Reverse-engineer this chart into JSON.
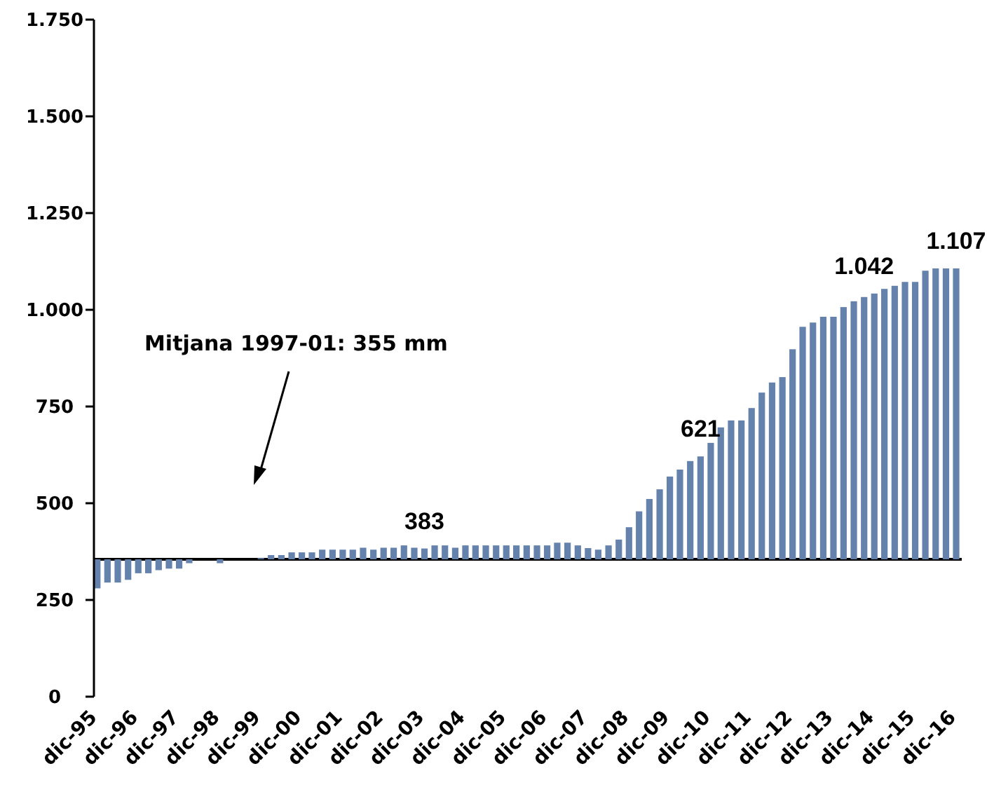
{
  "chart_data": {
    "type": "bar",
    "color": "#6582ad",
    "x": [
      "1995-12",
      "1996-03",
      "1996-06",
      "1996-09",
      "1996-12",
      "1997-03",
      "1997-06",
      "1997-09",
      "1997-12",
      "1998-03",
      "1998-06",
      "1998-09",
      "1998-12",
      "1999-03",
      "1999-06",
      "1999-09",
      "1999-12",
      "2000-03",
      "2000-06",
      "2000-09",
      "2000-12",
      "2001-03",
      "2001-06",
      "2001-09",
      "2001-12",
      "2002-03",
      "2002-06",
      "2002-09",
      "2002-12",
      "2003-03",
      "2003-06",
      "2003-09",
      "2003-12",
      "2004-03",
      "2004-06",
      "2004-09",
      "2004-12",
      "2005-03",
      "2005-06",
      "2005-09",
      "2005-12",
      "2006-03",
      "2006-06",
      "2006-09",
      "2006-12",
      "2007-03",
      "2007-06",
      "2007-09",
      "2007-12",
      "2008-03",
      "2008-06",
      "2008-09",
      "2008-12",
      "2009-03",
      "2009-06",
      "2009-09",
      "2009-12",
      "2010-03",
      "2010-06",
      "2010-09",
      "2010-12",
      "2011-03",
      "2011-06",
      "2011-09",
      "2011-12",
      "2012-03",
      "2012-06",
      "2012-09",
      "2012-12",
      "2013-03",
      "2013-06",
      "2013-09",
      "2013-12",
      "2014-03",
      "2014-06",
      "2014-09",
      "2014-12",
      "2015-03",
      "2015-06",
      "2015-09",
      "2015-12",
      "2016-03",
      "2016-06",
      "2016-09",
      "2016-12"
    ],
    "base": [
      355,
      355,
      355,
      355,
      355,
      355,
      355,
      355,
      355,
      355,
      null,
      null,
      355,
      null,
      null,
      null,
      355,
      355,
      355,
      355,
      355,
      355,
      355,
      355,
      355,
      355,
      355,
      355,
      355,
      355,
      355,
      355,
      355,
      355,
      355,
      355,
      355,
      355,
      355,
      355,
      355,
      355,
      355,
      355,
      355,
      355,
      355,
      355,
      355,
      355,
      355,
      355,
      355,
      355,
      355,
      355,
      355,
      355,
      355,
      355,
      355,
      355,
      355,
      355,
      355,
      355,
      355,
      355,
      355,
      355,
      355,
      355,
      355,
      355,
      355,
      355,
      355,
      355,
      355,
      355,
      355,
      355,
      355,
      355,
      355
    ],
    "values": [
      -75,
      -60,
      -60,
      -53,
      -36,
      -36,
      -28,
      -24,
      -24,
      -10,
      null,
      null,
      -10,
      null,
      null,
      null,
      3,
      11,
      11,
      18,
      18,
      18,
      25,
      25,
      25,
      25,
      30,
      25,
      30,
      30,
      36,
      30,
      28,
      36,
      36,
      30,
      36,
      36,
      36,
      36,
      36,
      36,
      36,
      36,
      36,
      43,
      43,
      36,
      29,
      25,
      36,
      51,
      83,
      124,
      156,
      181,
      214,
      232,
      254,
      266,
      301,
      341,
      359,
      359,
      391,
      431,
      457,
      471,
      543,
      601,
      612,
      627,
      627,
      652,
      667,
      678,
      687,
      699,
      707,
      717,
      717,
      746,
      752,
      752,
      752
    ],
    "xlim": [
      "1995-11-01",
      "2017-01-20"
    ],
    "xticks": [
      {
        "value": "1995-12",
        "label": "dic-95"
      },
      {
        "value": "1996-12",
        "label": "dic-96"
      },
      {
        "value": "1997-12",
        "label": "dic-97"
      },
      {
        "value": "1998-12",
        "label": "dic-98"
      },
      {
        "value": "1999-12",
        "label": "dic-99"
      },
      {
        "value": "2000-12",
        "label": "dic-00"
      },
      {
        "value": "2001-12",
        "label": "dic-01"
      },
      {
        "value": "2002-12",
        "label": "dic-02"
      },
      {
        "value": "2003-12",
        "label": "dic-03"
      },
      {
        "value": "2004-12",
        "label": "dic-04"
      },
      {
        "value": "2005-12",
        "label": "dic-05"
      },
      {
        "value": "2006-12",
        "label": "dic-06"
      },
      {
        "value": "2007-12",
        "label": "dic-07"
      },
      {
        "value": "2008-12",
        "label": "dic-08"
      },
      {
        "value": "2009-12",
        "label": "dic-09"
      },
      {
        "value": "2010-12",
        "label": "dic-10"
      },
      {
        "value": "2011-12",
        "label": "dic-11"
      },
      {
        "value": "2012-12",
        "label": "dic-12"
      },
      {
        "value": "2013-12",
        "label": "dic-13"
      },
      {
        "value": "2014-12",
        "label": "dic-14"
      },
      {
        "value": "2015-12",
        "label": "dic-15"
      },
      {
        "value": "2016-12",
        "label": "dic-16"
      }
    ],
    "ylim": [
      0,
      1750
    ],
    "yticks": [
      0,
      250,
      500,
      750,
      {
        "value": 1000,
        "label": "1.000"
      },
      {
        "value": 1250,
        "label": "1.250"
      },
      {
        "value": 1500,
        "label": "1.500"
      },
      {
        "value": 1750,
        "label": "1.750"
      }
    ],
    "ref_lines": [
      {
        "axis": "y",
        "value": 355,
        "label": "Mitjana 1997-01: 355 mm",
        "color": "#000000"
      }
    ],
    "annotations": [
      {
        "text": "383",
        "x": "2003-12",
        "y": 383
      },
      {
        "text": "621",
        "x": "2010-09",
        "y": 621
      },
      {
        "text": "1.042",
        "x": "2014-09",
        "y": 1042
      },
      {
        "text": "1.107",
        "x": "2016-12",
        "y": 1107
      }
    ],
    "grid": false
  }
}
